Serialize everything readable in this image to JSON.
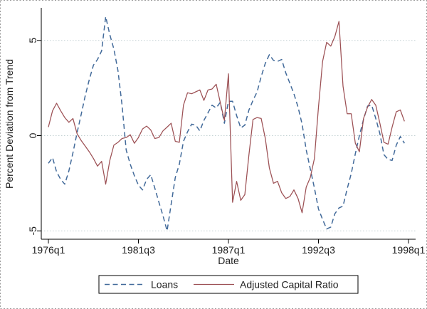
{
  "figure": {
    "background": "#ffffff",
    "outer_border_color": "#9a9a9a",
    "text_color": "#202020",
    "gridline_color": "#c3d1d3"
  },
  "chart_data": {
    "type": "line",
    "title": "",
    "xlabel": "Date",
    "ylabel": "Percent Deviation from Trend",
    "x_unit": "quarter",
    "x_start": "1976q1",
    "x_axis_end": "1998q1",
    "grid": true,
    "legend_position": "bottom",
    "y_ticks": [
      5,
      0,
      -5
    ],
    "ylim": [
      -5.5,
      6.6
    ],
    "x_ticks": [
      {
        "label": "1976q1",
        "q": 0
      },
      {
        "label": "1981q3",
        "q": 22
      },
      {
        "label": "1987q1",
        "q": 44
      },
      {
        "label": "1992q3",
        "q": 66
      },
      {
        "label": "1998q1",
        "q": 88
      }
    ],
    "series": [
      {
        "name": "Loans",
        "color": "#426a9a",
        "dash": "dashed",
        "values": [
          -1.45,
          -1.15,
          -1.9,
          -2.3,
          -2.55,
          -1.85,
          -0.9,
          0.15,
          1.1,
          2.1,
          2.95,
          3.7,
          4.0,
          4.45,
          6.25,
          5.3,
          4.55,
          3.4,
          1.6,
          -0.75,
          -1.5,
          -2.1,
          -2.6,
          -2.85,
          -2.3,
          -2.05,
          -2.75,
          -3.5,
          -4.2,
          -5.0,
          -3.6,
          -2.2,
          -1.5,
          -0.3,
          0.2,
          0.6,
          0.55,
          0.25,
          0.8,
          1.2,
          1.6,
          1.45,
          1.75,
          0.65,
          1.8,
          1.8,
          1.05,
          0.4,
          0.55,
          1.35,
          1.85,
          2.3,
          3.1,
          3.8,
          4.25,
          3.95,
          3.9,
          4.0,
          3.3,
          2.75,
          2.2,
          1.5,
          0.6,
          -0.75,
          -1.75,
          -2.75,
          -3.85,
          -4.4,
          -4.9,
          -4.8,
          -4.1,
          -3.8,
          -3.7,
          -2.8,
          -2.0,
          -0.95,
          0.0,
          0.85,
          1.55,
          1.6,
          0.9,
          0.1,
          -1.0,
          -1.25,
          -1.3,
          -0.5,
          -0.05,
          -0.4
        ]
      },
      {
        "name": "Adjusted Capital Ratio",
        "color": "#9c5054",
        "dash": "solid",
        "values": [
          0.45,
          1.3,
          1.7,
          1.3,
          0.95,
          0.7,
          0.9,
          0.1,
          -0.25,
          -0.55,
          -0.85,
          -1.2,
          -1.6,
          -1.35,
          -2.55,
          -1.3,
          -0.5,
          -0.35,
          -0.15,
          -0.1,
          0.05,
          -0.4,
          -0.1,
          0.35,
          0.5,
          0.3,
          -0.15,
          -0.1,
          0.25,
          0.45,
          0.65,
          -0.3,
          -0.35,
          1.6,
          2.25,
          2.2,
          2.3,
          2.4,
          1.85,
          2.4,
          2.45,
          2.7,
          1.75,
          0.8,
          3.25,
          -3.5,
          -2.4,
          -3.4,
          -3.1,
          -1.0,
          0.85,
          0.95,
          0.9,
          -0.15,
          -1.7,
          -2.5,
          -2.4,
          -3.0,
          -3.3,
          -3.2,
          -2.85,
          -3.3,
          -4.05,
          -2.7,
          -2.2,
          -1.2,
          1.5,
          3.9,
          4.9,
          4.7,
          5.2,
          6.0,
          2.6,
          1.15,
          1.15,
          -0.4,
          -0.85,
          0.9,
          1.5,
          1.9,
          1.6,
          0.65,
          -0.35,
          -0.45,
          0.45,
          1.25,
          1.35,
          0.75
        ]
      }
    ]
  }
}
